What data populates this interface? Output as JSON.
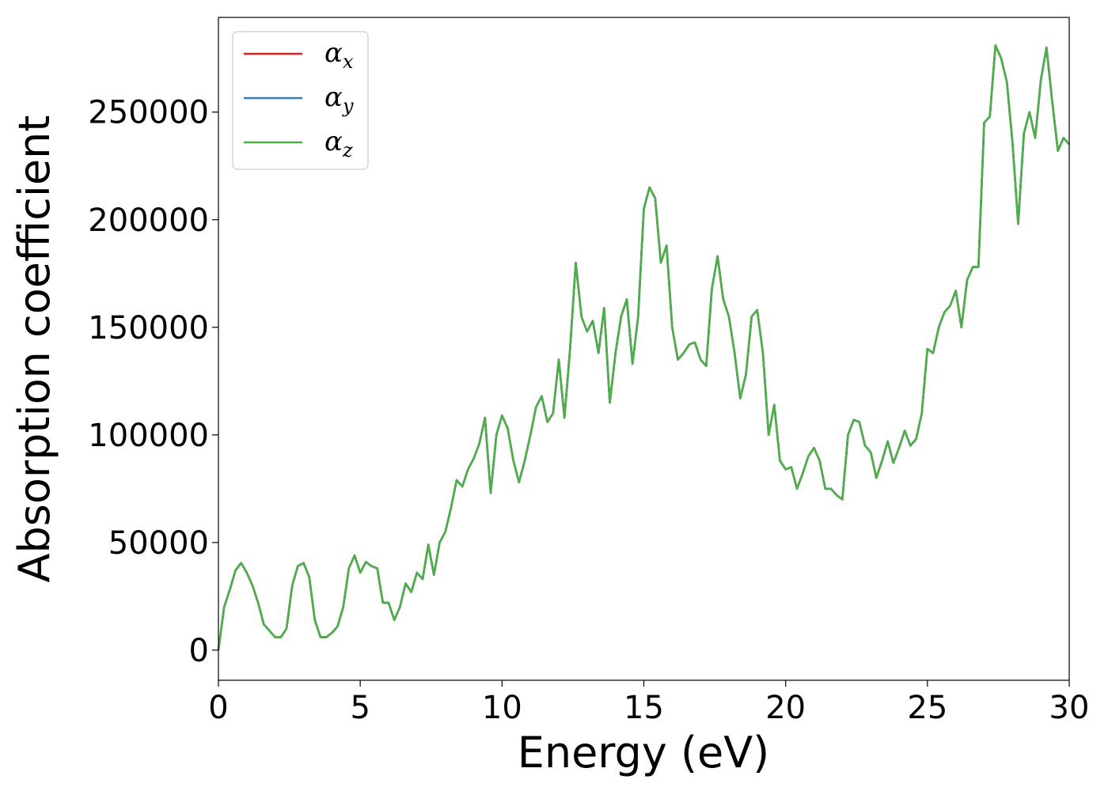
{
  "chart_data": {
    "type": "line",
    "title": "",
    "xlabel": "Energy (eV)",
    "ylabel": "Absorption coefficient",
    "xlim": [
      0,
      30
    ],
    "ylim": [
      -14000,
      294000
    ],
    "xticks": [
      0,
      5,
      10,
      15,
      20,
      25,
      30
    ],
    "yticks": [
      0,
      50000,
      100000,
      150000,
      200000,
      250000
    ],
    "grid": false,
    "legend_position": "top-left",
    "series": [
      {
        "name": "αx",
        "label_base": "α",
        "label_sub": "x",
        "color": "#e41a1c",
        "x": [
          0,
          0.2,
          0.4,
          0.6,
          0.8,
          1.0,
          1.2,
          1.4,
          1.6,
          1.8,
          2.0,
          2.2,
          2.4,
          2.6,
          2.8,
          3.0,
          3.2,
          3.4,
          3.6,
          3.8,
          4.0,
          4.2,
          4.4,
          4.6,
          4.8,
          5.0,
          5.2,
          5.4,
          5.6,
          5.8,
          6.0,
          6.2,
          6.4,
          6.6,
          6.8,
          7.0,
          7.2,
          7.4,
          7.6,
          7.8,
          8.0,
          8.2,
          8.4,
          8.6,
          8.8,
          9.0,
          9.2,
          9.4,
          9.6,
          9.8,
          10.0,
          10.2,
          10.4,
          10.6,
          10.8,
          11.0,
          11.2,
          11.4,
          11.6,
          11.8,
          12.0,
          12.2,
          12.4,
          12.6,
          12.8,
          13.0,
          13.2,
          13.4,
          13.6,
          13.8,
          14.0,
          14.2,
          14.4,
          14.6,
          14.8,
          15.0,
          15.2,
          15.4,
          15.6,
          15.8,
          16.0,
          16.2,
          16.4,
          16.6,
          16.8,
          17.0,
          17.2,
          17.4,
          17.6,
          17.8,
          18.0,
          18.2,
          18.4,
          18.6,
          18.8,
          19.0,
          19.2,
          19.4,
          19.6,
          19.8,
          20.0,
          20.2,
          20.4,
          20.6,
          20.8,
          21.0,
          21.2,
          21.4,
          21.6,
          21.8,
          22.0,
          22.2,
          22.4,
          22.6,
          22.8,
          23.0,
          23.2,
          23.4,
          23.6,
          23.8,
          24.0,
          24.2,
          24.4,
          24.6,
          24.8,
          25.0,
          25.2,
          25.4,
          25.6,
          25.8,
          26.0,
          26.2,
          26.4,
          26.6,
          26.8,
          27.0,
          27.2,
          27.4,
          27.6,
          27.8,
          28.0,
          28.2,
          28.4,
          28.6,
          28.8,
          29.0,
          29.2,
          29.4,
          29.6,
          29.8,
          30.0
        ],
        "y": [
          0,
          20000,
          28000,
          37000,
          40500,
          36000,
          30000,
          22000,
          12000,
          9000,
          6000,
          6000,
          10000,
          30000,
          39000,
          40500,
          34000,
          14000,
          6000,
          6000,
          8000,
          11000,
          20000,
          38000,
          44000,
          36000,
          41000,
          39000,
          38000,
          22000,
          22000,
          14000,
          20000,
          31000,
          27000,
          36000,
          33000,
          49000,
          35000,
          50000,
          55000,
          66000,
          79000,
          76000,
          84000,
          89000,
          96000,
          108000,
          73000,
          100000,
          109000,
          103000,
          88000,
          78000,
          88000,
          100000,
          113000,
          118000,
          106000,
          110000,
          135000,
          108000,
          140000,
          180000,
          155000,
          148000,
          153000,
          138000,
          159000,
          115000,
          138000,
          155000,
          163000,
          133000,
          155000,
          205000,
          215000,
          210000,
          180000,
          188000,
          150000,
          135000,
          138000,
          142000,
          143000,
          135000,
          132000,
          168000,
          183000,
          163000,
          155000,
          138000,
          117000,
          128000,
          155000,
          158000,
          138000,
          100000,
          114000,
          88000,
          84000,
          85000,
          75000,
          82000,
          90000,
          94000,
          88000,
          75000,
          75000,
          72000,
          70000,
          100000,
          107000,
          106000,
          95000,
          92000,
          80000,
          88000,
          97000,
          87000,
          94000,
          102000,
          95000,
          98000,
          110000,
          140000,
          138000,
          150000,
          157000,
          160000,
          167000,
          150000,
          172000,
          178000,
          178000,
          245000,
          248000,
          281000,
          275000,
          264000,
          236000,
          198000,
          240000,
          250000,
          238000,
          265000,
          280000,
          255000,
          232000,
          238000,
          235000
        ]
      },
      {
        "name": "αy",
        "label_base": "α",
        "label_sub": "y",
        "color": "#377eb8",
        "x": [
          0,
          0.2,
          0.4,
          0.6,
          0.8,
          1.0,
          1.2,
          1.4,
          1.6,
          1.8,
          2.0,
          2.2,
          2.4,
          2.6,
          2.8,
          3.0,
          3.2,
          3.4,
          3.6,
          3.8,
          4.0,
          4.2,
          4.4,
          4.6,
          4.8,
          5.0,
          5.2,
          5.4,
          5.6,
          5.8,
          6.0,
          6.2,
          6.4,
          6.6,
          6.8,
          7.0,
          7.2,
          7.4,
          7.6,
          7.8,
          8.0,
          8.2,
          8.4,
          8.6,
          8.8,
          9.0,
          9.2,
          9.4,
          9.6,
          9.8,
          10.0,
          10.2,
          10.4,
          10.6,
          10.8,
          11.0,
          11.2,
          11.4,
          11.6,
          11.8,
          12.0,
          12.2,
          12.4,
          12.6,
          12.8,
          13.0,
          13.2,
          13.4,
          13.6,
          13.8,
          14.0,
          14.2,
          14.4,
          14.6,
          14.8,
          15.0,
          15.2,
          15.4,
          15.6,
          15.8,
          16.0,
          16.2,
          16.4,
          16.6,
          16.8,
          17.0,
          17.2,
          17.4,
          17.6,
          17.8,
          18.0,
          18.2,
          18.4,
          18.6,
          18.8,
          19.0,
          19.2,
          19.4,
          19.6,
          19.8,
          20.0,
          20.2,
          20.4,
          20.6,
          20.8,
          21.0,
          21.2,
          21.4,
          21.6,
          21.8,
          22.0,
          22.2,
          22.4,
          22.6,
          22.8,
          23.0,
          23.2,
          23.4,
          23.6,
          23.8,
          24.0,
          24.2,
          24.4,
          24.6,
          24.8,
          25.0,
          25.2,
          25.4,
          25.6,
          25.8,
          26.0,
          26.2,
          26.4,
          26.6,
          26.8,
          27.0,
          27.2,
          27.4,
          27.6,
          27.8,
          28.0,
          28.2,
          28.4,
          28.6,
          28.8,
          29.0,
          29.2,
          29.4,
          29.6,
          29.8,
          30.0
        ],
        "y": [
          0,
          20000,
          28000,
          37000,
          40500,
          36000,
          30000,
          22000,
          12000,
          9000,
          6000,
          6000,
          10000,
          30000,
          39000,
          40500,
          34000,
          14000,
          6000,
          6000,
          8000,
          11000,
          20000,
          38000,
          44000,
          36000,
          41000,
          39000,
          38000,
          22000,
          22000,
          14000,
          20000,
          31000,
          27000,
          36000,
          33000,
          49000,
          35000,
          50000,
          55000,
          66000,
          79000,
          76000,
          84000,
          89000,
          96000,
          108000,
          73000,
          100000,
          109000,
          103000,
          88000,
          78000,
          88000,
          100000,
          113000,
          118000,
          106000,
          110000,
          135000,
          108000,
          140000,
          180000,
          155000,
          148000,
          153000,
          138000,
          159000,
          115000,
          138000,
          155000,
          163000,
          133000,
          155000,
          205000,
          215000,
          210000,
          180000,
          188000,
          150000,
          135000,
          138000,
          142000,
          143000,
          135000,
          132000,
          168000,
          183000,
          163000,
          155000,
          138000,
          117000,
          128000,
          155000,
          158000,
          138000,
          100000,
          114000,
          88000,
          84000,
          85000,
          75000,
          82000,
          90000,
          94000,
          88000,
          75000,
          75000,
          72000,
          70000,
          100000,
          107000,
          106000,
          95000,
          92000,
          80000,
          88000,
          97000,
          87000,
          94000,
          102000,
          95000,
          98000,
          110000,
          140000,
          138000,
          150000,
          157000,
          160000,
          167000,
          150000,
          172000,
          178000,
          178000,
          245000,
          248000,
          281000,
          275000,
          264000,
          236000,
          198000,
          240000,
          250000,
          238000,
          265000,
          280000,
          255000,
          232000,
          238000,
          235000
        ]
      },
      {
        "name": "αz",
        "label_base": "α",
        "label_sub": "z",
        "color": "#4daf4a",
        "x": [
          0,
          0.2,
          0.4,
          0.6,
          0.8,
          1.0,
          1.2,
          1.4,
          1.6,
          1.8,
          2.0,
          2.2,
          2.4,
          2.6,
          2.8,
          3.0,
          3.2,
          3.4,
          3.6,
          3.8,
          4.0,
          4.2,
          4.4,
          4.6,
          4.8,
          5.0,
          5.2,
          5.4,
          5.6,
          5.8,
          6.0,
          6.2,
          6.4,
          6.6,
          6.8,
          7.0,
          7.2,
          7.4,
          7.6,
          7.8,
          8.0,
          8.2,
          8.4,
          8.6,
          8.8,
          9.0,
          9.2,
          9.4,
          9.6,
          9.8,
          10.0,
          10.2,
          10.4,
          10.6,
          10.8,
          11.0,
          11.2,
          11.4,
          11.6,
          11.8,
          12.0,
          12.2,
          12.4,
          12.6,
          12.8,
          13.0,
          13.2,
          13.4,
          13.6,
          13.8,
          14.0,
          14.2,
          14.4,
          14.6,
          14.8,
          15.0,
          15.2,
          15.4,
          15.6,
          15.8,
          16.0,
          16.2,
          16.4,
          16.6,
          16.8,
          17.0,
          17.2,
          17.4,
          17.6,
          17.8,
          18.0,
          18.2,
          18.4,
          18.6,
          18.8,
          19.0,
          19.2,
          19.4,
          19.6,
          19.8,
          20.0,
          20.2,
          20.4,
          20.6,
          20.8,
          21.0,
          21.2,
          21.4,
          21.6,
          21.8,
          22.0,
          22.2,
          22.4,
          22.6,
          22.8,
          23.0,
          23.2,
          23.4,
          23.6,
          23.8,
          24.0,
          24.2,
          24.4,
          24.6,
          24.8,
          25.0,
          25.2,
          25.4,
          25.6,
          25.8,
          26.0,
          26.2,
          26.4,
          26.6,
          26.8,
          27.0,
          27.2,
          27.4,
          27.6,
          27.8,
          28.0,
          28.2,
          28.4,
          28.6,
          28.8,
          29.0,
          29.2,
          29.4,
          29.6,
          29.8,
          30.0
        ],
        "y": [
          0,
          20000,
          28000,
          37000,
          40500,
          36000,
          30000,
          22000,
          12000,
          9000,
          6000,
          6000,
          10000,
          30000,
          39000,
          40500,
          34000,
          14000,
          6000,
          6000,
          8000,
          11000,
          20000,
          38000,
          44000,
          36000,
          41000,
          39000,
          38000,
          22000,
          22000,
          14000,
          20000,
          31000,
          27000,
          36000,
          33000,
          49000,
          35000,
          50000,
          55000,
          66000,
          79000,
          76000,
          84000,
          89000,
          96000,
          108000,
          73000,
          100000,
          109000,
          103000,
          88000,
          78000,
          88000,
          100000,
          113000,
          118000,
          106000,
          110000,
          135000,
          108000,
          140000,
          180000,
          155000,
          148000,
          153000,
          138000,
          159000,
          115000,
          138000,
          155000,
          163000,
          133000,
          155000,
          205000,
          215000,
          210000,
          180000,
          188000,
          150000,
          135000,
          138000,
          142000,
          143000,
          135000,
          132000,
          168000,
          183000,
          163000,
          155000,
          138000,
          117000,
          128000,
          155000,
          158000,
          138000,
          100000,
          114000,
          88000,
          84000,
          85000,
          75000,
          82000,
          90000,
          94000,
          88000,
          75000,
          75000,
          72000,
          70000,
          100000,
          107000,
          106000,
          95000,
          92000,
          80000,
          88000,
          97000,
          87000,
          94000,
          102000,
          95000,
          98000,
          110000,
          140000,
          138000,
          150000,
          157000,
          160000,
          167000,
          150000,
          172000,
          178000,
          178000,
          245000,
          248000,
          281000,
          275000,
          264000,
          236000,
          198000,
          240000,
          250000,
          238000,
          265000,
          280000,
          255000,
          232000,
          238000,
          235000
        ]
      }
    ]
  }
}
